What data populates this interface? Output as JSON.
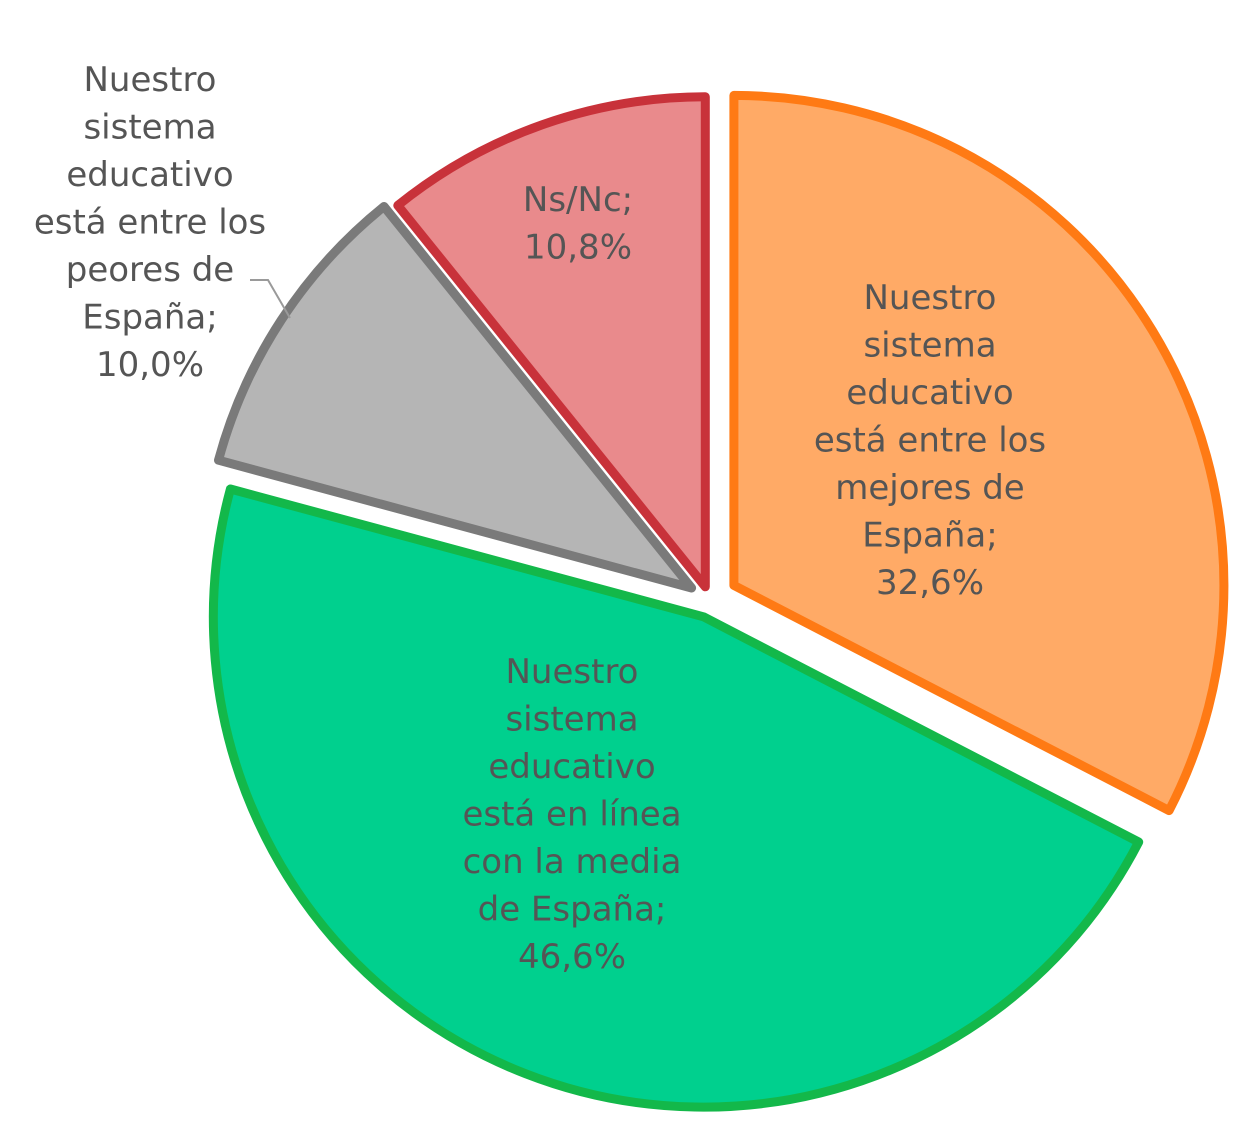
{
  "chart_data": {
    "type": "pie",
    "start_angle_deg": 0,
    "direction": "clockwise",
    "exploded": true,
    "legend": "none",
    "slices": [
      {
        "label": "Nuestro sistema educativo está entre los mejores de España",
        "value": 32.6,
        "display": "32,6%",
        "label_lines": [
          "Nuestro",
          "sistema",
          "educativo",
          "está entre los",
          "mejores de",
          "España;",
          "32,6%"
        ],
        "fill": "#FFAA66",
        "stroke": "#FF7A14"
      },
      {
        "label": "Nuestro sistema educativo está en línea con la media de España",
        "value": 46.6,
        "display": "46,6%",
        "label_lines": [
          "Nuestro",
          "sistema",
          "educativo",
          "está en línea",
          "con la media",
          "de España;",
          "46,6%"
        ],
        "fill": "#00D08E",
        "stroke": "#13B84A"
      },
      {
        "label": "Nuestro sistema educativo está entre los peores de España",
        "value": 10.0,
        "display": "10,0%",
        "label_lines": [
          "Nuestro",
          "sistema",
          "educativo",
          "está entre los",
          "peores de",
          "España;",
          "10,0%"
        ],
        "fill": "#B5B5B5",
        "stroke": "#7A7A7A"
      },
      {
        "label": "Ns/Nc",
        "value": 10.8,
        "display": "10,8%",
        "label_lines": [
          "Ns/Nc;",
          "10,8%"
        ],
        "fill": "#E98A8C",
        "stroke": "#C8323A"
      }
    ]
  }
}
